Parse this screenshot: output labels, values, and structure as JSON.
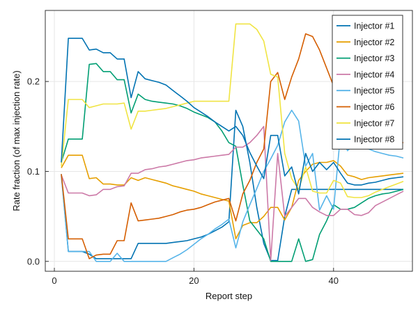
{
  "chart_data": {
    "type": "line",
    "title": "",
    "xlabel": "Report step",
    "ylabel": "Rate fraction (of max injection rate)",
    "xlim": [
      -1.3,
      51.3
    ],
    "ylim": [
      -0.011,
      0.279
    ],
    "xticks": [
      0,
      20,
      40
    ],
    "yticks": [
      0.0,
      0.1,
      0.2
    ],
    "ytick_labels": [
      "0.0",
      "0.1",
      "0.2"
    ],
    "grid": true,
    "legend_position": "top-right",
    "series": [
      {
        "name": "Injector #1",
        "color": "#0072B2",
        "x": [
          1,
          2,
          3,
          4,
          5,
          6,
          7,
          8,
          9,
          10,
          11,
          12,
          13,
          14,
          15,
          16,
          17,
          18,
          19,
          20,
          21,
          22,
          23,
          24,
          25,
          26,
          27,
          28,
          29,
          30,
          31,
          32,
          33,
          34,
          35,
          36,
          37,
          38,
          39,
          40,
          41,
          42,
          43,
          44,
          45,
          46,
          47,
          48,
          49,
          50
        ],
        "y": [
          0.097,
          0.011,
          0.011,
          0.011,
          0.008,
          0.003,
          0.003,
          0.003,
          0.003,
          0.003,
          0.003,
          0.02,
          0.02,
          0.02,
          0.02,
          0.02,
          0.021,
          0.022,
          0.023,
          0.025,
          0.027,
          0.03,
          0.034,
          0.038,
          0.044,
          0.168,
          0.15,
          0.11,
          0.06,
          0.02,
          0.001,
          0.001,
          0.05,
          0.08,
          0.08,
          0.08,
          0.08,
          0.08,
          0.08,
          0.08,
          0.08,
          0.08,
          0.08,
          0.08,
          0.08,
          0.08,
          0.08,
          0.08,
          0.08,
          0.08
        ]
      },
      {
        "name": "Injector #2",
        "color": "#E69F00",
        "x": [
          1,
          2,
          3,
          4,
          5,
          6,
          7,
          8,
          9,
          10,
          11,
          12,
          13,
          14,
          15,
          16,
          17,
          18,
          19,
          20,
          21,
          22,
          23,
          24,
          25,
          26,
          27,
          28,
          29,
          30,
          31,
          32,
          33,
          34,
          35,
          36,
          37,
          38,
          39,
          40,
          41,
          42,
          43,
          44,
          45,
          46,
          47,
          48,
          49,
          50
        ],
        "y": [
          0.104,
          0.118,
          0.118,
          0.118,
          0.092,
          0.093,
          0.086,
          0.086,
          0.085,
          0.085,
          0.093,
          0.09,
          0.093,
          0.091,
          0.089,
          0.087,
          0.084,
          0.082,
          0.08,
          0.078,
          0.075,
          0.073,
          0.071,
          0.069,
          0.067,
          0.025,
          0.04,
          0.043,
          0.043,
          0.05,
          0.06,
          0.06,
          0.046,
          0.06,
          0.09,
          0.1,
          0.108,
          0.11,
          0.11,
          0.112,
          0.106,
          0.096,
          0.094,
          0.091,
          0.093,
          0.094,
          0.095,
          0.096,
          0.097,
          0.098
        ]
      },
      {
        "name": "Injector #3",
        "color": "#009E73",
        "x": [
          1,
          2,
          3,
          4,
          5,
          6,
          7,
          8,
          9,
          10,
          11,
          12,
          13,
          14,
          15,
          16,
          17,
          18,
          19,
          20,
          21,
          22,
          23,
          24,
          25,
          26,
          27,
          28,
          29,
          30,
          31,
          32,
          33,
          34,
          35,
          36,
          37,
          38,
          39,
          40,
          41,
          42,
          43,
          44,
          45,
          46,
          47,
          48,
          49,
          50
        ],
        "y": [
          0.11,
          0.136,
          0.136,
          0.136,
          0.219,
          0.22,
          0.211,
          0.211,
          0.202,
          0.202,
          0.165,
          0.186,
          0.18,
          0.178,
          0.177,
          0.176,
          0.175,
          0.173,
          0.17,
          0.166,
          0.163,
          0.16,
          0.155,
          0.145,
          0.132,
          0.128,
          0.085,
          0.045,
          0.035,
          0.025,
          0.0,
          0.0,
          0.0,
          0.0,
          0.025,
          0.0,
          0.002,
          0.03,
          0.045,
          0.063,
          0.058,
          0.058,
          0.06,
          0.065,
          0.07,
          0.073,
          0.075,
          0.076,
          0.078,
          0.08
        ]
      },
      {
        "name": "Injector #4",
        "color": "#CC79A7",
        "x": [
          1,
          2,
          3,
          4,
          5,
          6,
          7,
          8,
          9,
          10,
          11,
          12,
          13,
          14,
          15,
          16,
          17,
          18,
          19,
          20,
          21,
          22,
          23,
          24,
          25,
          26,
          27,
          28,
          29,
          30,
          31,
          32,
          33,
          34,
          35,
          36,
          37,
          38,
          39,
          40,
          41,
          42,
          43,
          44,
          45,
          46,
          47,
          48,
          49,
          50
        ],
        "y": [
          0.096,
          0.076,
          0.076,
          0.076,
          0.073,
          0.074,
          0.08,
          0.08,
          0.083,
          0.084,
          0.098,
          0.098,
          0.102,
          0.103,
          0.105,
          0.106,
          0.108,
          0.11,
          0.112,
          0.113,
          0.115,
          0.116,
          0.117,
          0.118,
          0.119,
          0.127,
          0.127,
          0.132,
          0.14,
          0.15,
          0.001,
          0.12,
          0.05,
          0.06,
          0.07,
          0.07,
          0.06,
          0.055,
          0.051,
          0.051,
          0.058,
          0.058,
          0.052,
          0.051,
          0.054,
          0.062,
          0.066,
          0.07,
          0.074,
          0.078
        ]
      },
      {
        "name": "Injector #5",
        "color": "#56B4E9",
        "x": [
          1,
          2,
          3,
          4,
          5,
          6,
          7,
          8,
          9,
          10,
          11,
          12,
          13,
          14,
          15,
          16,
          17,
          18,
          19,
          20,
          21,
          22,
          23,
          24,
          25,
          26,
          27,
          28,
          29,
          30,
          31,
          32,
          33,
          34,
          35,
          36,
          37,
          38,
          39,
          40,
          41,
          42,
          43,
          44,
          45,
          46,
          47,
          48,
          49,
          50
        ],
        "y": [
          0.095,
          0.011,
          0.011,
          0.011,
          0.011,
          0.0,
          0.0,
          0.0,
          0.009,
          0.0,
          0.0,
          0.0,
          0.0,
          0.0,
          0.0,
          0.0,
          0.004,
          0.008,
          0.013,
          0.019,
          0.025,
          0.03,
          0.036,
          0.041,
          0.047,
          0.015,
          0.044,
          0.063,
          0.081,
          0.1,
          0.114,
          0.129,
          0.155,
          0.168,
          0.156,
          0.106,
          0.12,
          0.057,
          0.073,
          0.058,
          0.142,
          0.123,
          0.13,
          0.127,
          0.125,
          0.122,
          0.12,
          0.118,
          0.117,
          0.115
        ]
      },
      {
        "name": "Injector #6",
        "color": "#D55E00",
        "x": [
          1,
          2,
          3,
          4,
          5,
          6,
          7,
          8,
          9,
          10,
          11,
          12,
          13,
          14,
          15,
          16,
          17,
          18,
          19,
          20,
          21,
          22,
          23,
          24,
          25,
          26,
          27,
          28,
          29,
          30,
          31,
          32,
          33,
          34,
          35,
          36,
          37,
          38,
          39,
          40,
          41,
          42,
          43,
          44,
          45,
          46,
          47,
          48,
          49,
          50
        ],
        "y": [
          0.097,
          0.025,
          0.025,
          0.025,
          0.003,
          0.007,
          0.008,
          0.008,
          0.023,
          0.023,
          0.065,
          0.045,
          0.046,
          0.047,
          0.048,
          0.05,
          0.052,
          0.055,
          0.057,
          0.058,
          0.06,
          0.063,
          0.066,
          0.068,
          0.07,
          0.045,
          0.075,
          0.09,
          0.11,
          0.125,
          0.2,
          0.21,
          0.18,
          0.205,
          0.225,
          0.253,
          0.25,
          0.235,
          0.215,
          0.195,
          0.175,
          0.158,
          0.16,
          0.148,
          0.14,
          0.13,
          0.13,
          0.132,
          0.132,
          0.132
        ]
      },
      {
        "name": "Injector #7",
        "color": "#F0E442",
        "x": [
          1,
          2,
          3,
          4,
          5,
          6,
          7,
          8,
          9,
          10,
          11,
          12,
          13,
          14,
          15,
          16,
          17,
          18,
          19,
          20,
          21,
          22,
          23,
          24,
          25,
          26,
          27,
          28,
          29,
          30,
          31,
          32,
          33,
          34,
          35,
          36,
          37,
          38,
          39,
          40,
          41,
          42,
          43,
          44,
          45,
          46,
          47,
          48,
          49,
          50
        ],
        "y": [
          0.106,
          0.18,
          0.18,
          0.18,
          0.171,
          0.173,
          0.175,
          0.175,
          0.175,
          0.176,
          0.147,
          0.167,
          0.167,
          0.168,
          0.169,
          0.17,
          0.172,
          0.174,
          0.176,
          0.178,
          0.178,
          0.178,
          0.178,
          0.178,
          0.178,
          0.264,
          0.264,
          0.264,
          0.258,
          0.245,
          0.208,
          0.205,
          0.12,
          0.092,
          0.08,
          0.105,
          0.078,
          0.076,
          0.076,
          0.09,
          0.087,
          0.072,
          0.071,
          0.071,
          0.073,
          0.077,
          0.08,
          0.083,
          0.086,
          0.089
        ]
      },
      {
        "name": "Injector #8",
        "color": "#0072B2",
        "x": [
          1,
          2,
          3,
          4,
          5,
          6,
          7,
          8,
          9,
          10,
          11,
          12,
          13,
          14,
          15,
          16,
          17,
          18,
          19,
          20,
          21,
          22,
          23,
          24,
          25,
          26,
          27,
          28,
          29,
          30,
          31,
          32,
          33,
          34,
          35,
          36,
          37,
          38,
          39,
          40,
          41,
          42,
          43,
          44,
          45,
          46,
          47,
          48,
          49,
          50
        ],
        "y": [
          0.11,
          0.248,
          0.248,
          0.248,
          0.235,
          0.236,
          0.232,
          0.232,
          0.225,
          0.225,
          0.182,
          0.211,
          0.203,
          0.201,
          0.199,
          0.196,
          0.19,
          0.184,
          0.178,
          0.171,
          0.166,
          0.161,
          0.155,
          0.15,
          0.145,
          0.15,
          0.14,
          0.121,
          0.106,
          0.092,
          0.14,
          0.14,
          0.095,
          0.105,
          0.075,
          0.12,
          0.1,
          0.11,
          0.102,
          0.11,
          0.098,
          0.087,
          0.085,
          0.085,
          0.087,
          0.088,
          0.09,
          0.092,
          0.093,
          0.094
        ]
      }
    ]
  }
}
